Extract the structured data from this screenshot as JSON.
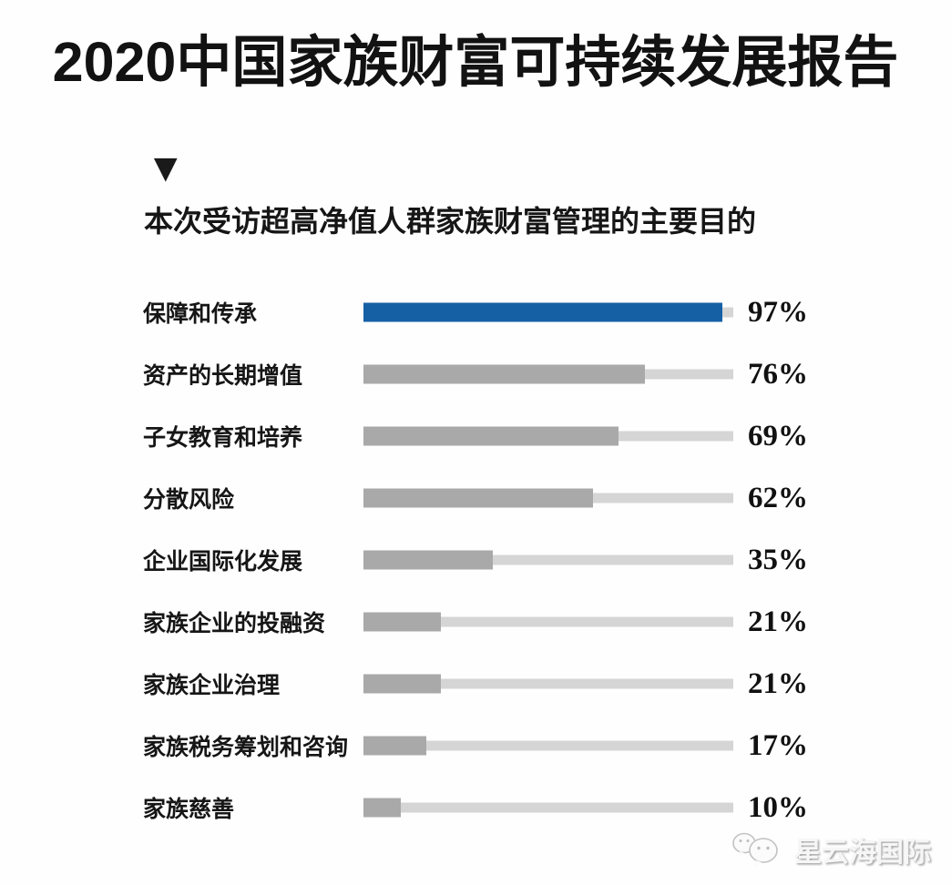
{
  "page": {
    "title": "2020中国家族财富可持续发展报告",
    "section_marker": "▼",
    "subtitle": "本次受访超高净值人群家族财富管理的主要目的",
    "watermark": {
      "icon": "wechat-icon",
      "text": "星云海国际"
    }
  },
  "colors": {
    "highlight_bar": "#1560a5",
    "default_bar": "#a9a9a9",
    "track": "#d5d5d5",
    "text": "#121212"
  },
  "chart_data": {
    "type": "bar",
    "orientation": "horizontal",
    "title": "本次受访超高净值人群家族财富管理的主要目的",
    "categories": [
      "保障和传承",
      "资产的长期增值",
      "子女教育和培养",
      "分散风险",
      "企业国际化发展",
      "家族企业的投融资",
      "家族企业治理",
      "家族税务筹划和咨询",
      "家族慈善"
    ],
    "values": [
      97,
      76,
      69,
      62,
      35,
      21,
      21,
      17,
      10
    ],
    "value_suffix": "%",
    "value_labels": [
      "97%",
      "76%",
      "69%",
      "62%",
      "35%",
      "21%",
      "21%",
      "17%",
      "10%"
    ],
    "highlight_index": 0,
    "xlim": [
      0,
      100
    ],
    "grid": false,
    "legend": false
  }
}
